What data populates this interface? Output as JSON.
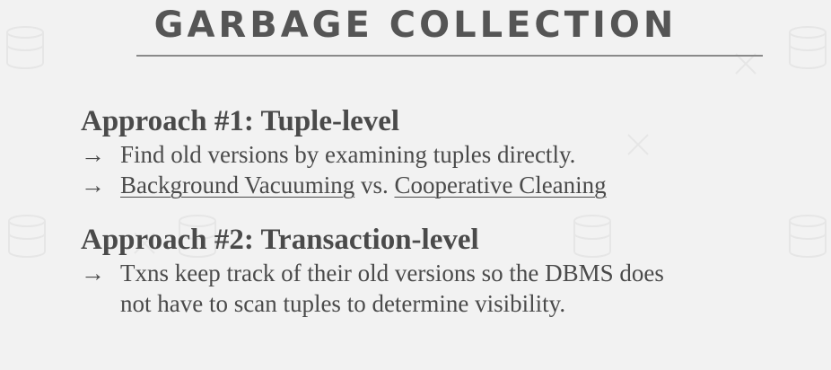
{
  "slide": {
    "title": "GARBAGE COLLECTION",
    "approach1": {
      "heading": "Approach #1: Tuple-level",
      "bullet1": "Find old versions by examining tuples directly.",
      "bullet2_link1": "Background Vacuuming",
      "bullet2_mid": " vs. ",
      "bullet2_link2": "Cooperative Cleaning"
    },
    "approach2": {
      "heading": "Approach #2: Transaction-level",
      "bullet1_line1": "Txns keep track of their old versions so the DBMS does",
      "bullet1_line2": "not have to scan tuples to determine visibility."
    },
    "arrow": "→"
  },
  "colors": {
    "background": "#f2f2f2",
    "title": "#555555",
    "text": "#4a4a4a",
    "rule": "#8a8a8a"
  }
}
